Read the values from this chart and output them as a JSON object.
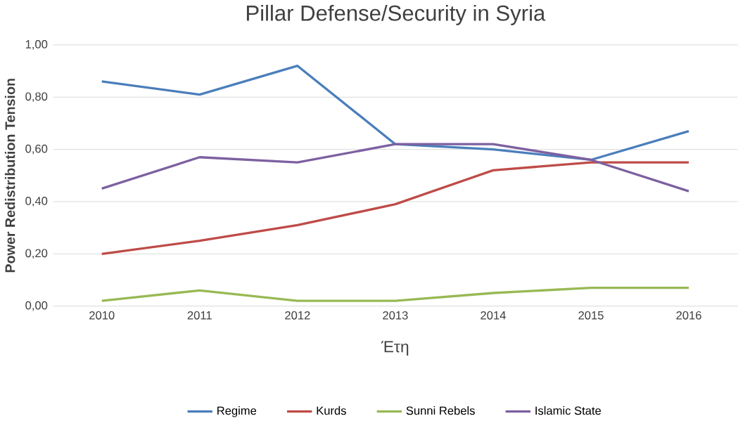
{
  "chart_data": {
    "type": "line",
    "title": "Pillar Defense/Security  in Syria",
    "xlabel": "Έτη",
    "ylabel": "Power Redistribution Tension",
    "categories": [
      "2010",
      "2011",
      "2012",
      "2013",
      "2014",
      "2015",
      "2016"
    ],
    "series": [
      {
        "name": "Regime",
        "color": "#4a7ebb",
        "values": [
          0.86,
          0.81,
          0.92,
          0.62,
          0.6,
          0.56,
          0.67
        ]
      },
      {
        "name": "Kurds",
        "color": "#be4b48",
        "values": [
          0.2,
          0.25,
          0.31,
          0.39,
          0.52,
          0.55,
          0.55
        ]
      },
      {
        "name": "Sunni Rebels",
        "color": "#98b954",
        "values": [
          0.02,
          0.06,
          0.02,
          0.02,
          0.05,
          0.07,
          0.07
        ]
      },
      {
        "name": "Islamic State",
        "color": "#7d60a0",
        "values": [
          0.45,
          0.57,
          0.55,
          0.62,
          0.62,
          0.56,
          0.44
        ]
      }
    ],
    "ylim": [
      0,
      1
    ],
    "yticks": [
      {
        "value": 0,
        "label": "0,00"
      },
      {
        "value": 0.2,
        "label": "0,20"
      },
      {
        "value": 0.4,
        "label": "0,40"
      },
      {
        "value": 0.6,
        "label": "0,60"
      },
      {
        "value": 0.8,
        "label": "0,80"
      },
      {
        "value": 1,
        "label": "1,00"
      }
    ],
    "grid": "y",
    "legend": "bottom",
    "marker": "none",
    "line_style": "solid"
  }
}
